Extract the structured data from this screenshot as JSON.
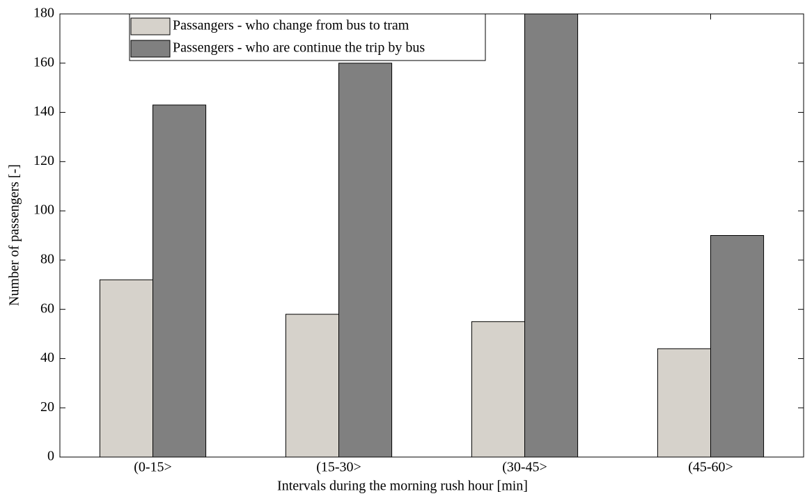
{
  "chart_data": {
    "type": "bar",
    "x_label": "Intervals during the morning rush hour [min]",
    "y_label": "Number of passengers [-]",
    "categories": [
      "(0-15>",
      "(15-30>",
      "(30-45>",
      "(45-60>"
    ],
    "series": [
      {
        "name": "Passangers - who change from bus to tram",
        "color": "#d6d2cb",
        "values": [
          72,
          58,
          55,
          44
        ]
      },
      {
        "name": "Passengers - who are continue the trip by bus",
        "color": "#808080",
        "values": [
          143,
          160,
          180,
          90
        ]
      }
    ],
    "ylim": [
      0,
      180
    ],
    "yticks": [
      0,
      20,
      40,
      60,
      80,
      100,
      120,
      140,
      160,
      180
    ],
    "grid": false,
    "legend": "upper left"
  }
}
